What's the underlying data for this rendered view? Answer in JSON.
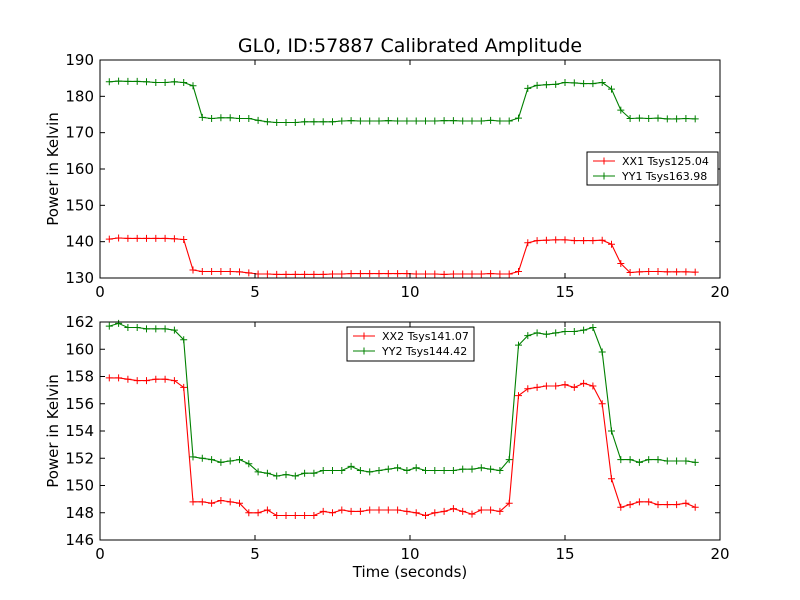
{
  "title": "GL0, ID:57887 Calibrated Amplitude",
  "colors": {
    "xx": "#ff0000",
    "yy": "#008000"
  },
  "chart_data": [
    {
      "type": "line",
      "title": "GL0, ID:57887 Calibrated Amplitude",
      "xlabel": "",
      "ylabel": "Power in Kelvin",
      "xlim": [
        0,
        20
      ],
      "ylim": [
        130,
        190
      ],
      "xticks": [
        "0",
        "5",
        "10",
        "15",
        "20"
      ],
      "yticks": [
        "130",
        "140",
        "150",
        "160",
        "170",
        "180",
        "190"
      ],
      "grid": false,
      "legend_position": "center-right",
      "x": [
        0.3,
        0.6,
        0.9,
        1.2,
        1.5,
        1.8,
        2.1,
        2.4,
        2.7,
        3.0,
        3.3,
        3.6,
        3.9,
        4.2,
        4.5,
        4.8,
        5.1,
        5.4,
        5.7,
        6.0,
        6.3,
        6.6,
        6.9,
        7.2,
        7.5,
        7.8,
        8.1,
        8.4,
        8.7,
        9.0,
        9.3,
        9.6,
        9.9,
        10.2,
        10.5,
        10.8,
        11.1,
        11.4,
        11.7,
        12.0,
        12.3,
        12.6,
        12.9,
        13.2,
        13.5,
        13.8,
        14.1,
        14.4,
        14.7,
        15.0,
        15.3,
        15.6,
        15.9,
        16.2,
        16.5,
        16.8,
        17.1,
        17.4,
        17.7,
        18.0,
        18.3,
        18.6,
        18.9,
        19.2
      ],
      "series": [
        {
          "name": "XX1 Tsys125.04",
          "color": "#ff0000",
          "values": [
            140.7,
            141.0,
            140.9,
            140.9,
            140.9,
            140.9,
            140.9,
            140.8,
            140.6,
            132.2,
            131.8,
            131.8,
            131.8,
            131.8,
            131.7,
            131.4,
            131.1,
            131.1,
            131.0,
            131.0,
            131.0,
            131.0,
            131.0,
            131.0,
            131.1,
            131.1,
            131.2,
            131.2,
            131.2,
            131.2,
            131.2,
            131.2,
            131.2,
            131.1,
            131.1,
            131.1,
            131.0,
            131.1,
            131.1,
            131.1,
            131.1,
            131.2,
            131.1,
            131.1,
            131.8,
            139.7,
            140.3,
            140.4,
            140.5,
            140.5,
            140.3,
            140.3,
            140.3,
            140.4,
            139.3,
            134.0,
            131.5,
            131.7,
            131.8,
            131.8,
            131.7,
            131.7,
            131.7,
            131.6
          ]
        },
        {
          "name": "YY1 Tsys163.98",
          "color": "#008000",
          "values": [
            184.0,
            184.2,
            184.1,
            184.1,
            184.0,
            183.8,
            183.8,
            184.0,
            183.8,
            182.9,
            174.2,
            173.9,
            174.1,
            174.1,
            173.9,
            173.9,
            173.4,
            173.0,
            172.8,
            172.8,
            172.8,
            173.0,
            173.0,
            173.0,
            173.0,
            173.2,
            173.3,
            173.2,
            173.2,
            173.2,
            173.3,
            173.2,
            173.2,
            173.2,
            173.2,
            173.2,
            173.3,
            173.3,
            173.2,
            173.2,
            173.2,
            173.4,
            173.2,
            173.2,
            174.0,
            182.2,
            183.0,
            183.2,
            183.3,
            183.8,
            183.7,
            183.5,
            183.5,
            183.8,
            182.0,
            176.2,
            173.9,
            174.0,
            173.9,
            174.0,
            173.8,
            173.8,
            173.9,
            173.8
          ]
        }
      ]
    },
    {
      "type": "line",
      "title": "",
      "xlabel": "Time (seconds)",
      "ylabel": "Power in Kelvin",
      "xlim": [
        0,
        20
      ],
      "ylim": [
        146,
        162
      ],
      "xticks": [
        "0",
        "5",
        "10",
        "15",
        "20"
      ],
      "yticks": [
        "146",
        "148",
        "150",
        "152",
        "154",
        "156",
        "158",
        "160",
        "162"
      ],
      "grid": false,
      "legend_position": "top-center",
      "x": [
        0.3,
        0.6,
        0.9,
        1.2,
        1.5,
        1.8,
        2.1,
        2.4,
        2.7,
        3.0,
        3.3,
        3.6,
        3.9,
        4.2,
        4.5,
        4.8,
        5.1,
        5.4,
        5.7,
        6.0,
        6.3,
        6.6,
        6.9,
        7.2,
        7.5,
        7.8,
        8.1,
        8.4,
        8.7,
        9.0,
        9.3,
        9.6,
        9.9,
        10.2,
        10.5,
        10.8,
        11.1,
        11.4,
        11.7,
        12.0,
        12.3,
        12.6,
        12.9,
        13.2,
        13.5,
        13.8,
        14.1,
        14.4,
        14.7,
        15.0,
        15.3,
        15.6,
        15.9,
        16.2,
        16.5,
        16.8,
        17.1,
        17.4,
        17.7,
        18.0,
        18.3,
        18.6,
        18.9,
        19.2
      ],
      "series": [
        {
          "name": "XX2 Tsys141.07",
          "color": "#ff0000",
          "values": [
            157.9,
            157.9,
            157.8,
            157.7,
            157.7,
            157.8,
            157.8,
            157.7,
            157.2,
            148.8,
            148.8,
            148.7,
            148.9,
            148.8,
            148.7,
            148.0,
            148.0,
            148.2,
            147.8,
            147.8,
            147.8,
            147.8,
            147.8,
            148.1,
            148.0,
            148.2,
            148.1,
            148.1,
            148.2,
            148.2,
            148.2,
            148.2,
            148.1,
            148.0,
            147.8,
            148.0,
            148.1,
            148.3,
            148.1,
            147.9,
            148.2,
            148.2,
            148.1,
            148.7,
            156.6,
            157.1,
            157.2,
            157.3,
            157.3,
            157.4,
            157.2,
            157.5,
            157.3,
            156.0,
            150.5,
            148.4,
            148.6,
            148.8,
            148.8,
            148.6,
            148.6,
            148.6,
            148.7,
            148.4
          ]
        },
        {
          "name": "YY2 Tsys144.42",
          "color": "#008000",
          "values": [
            161.7,
            161.9,
            161.6,
            161.6,
            161.5,
            161.5,
            161.5,
            161.4,
            160.7,
            152.1,
            152.0,
            151.9,
            151.7,
            151.8,
            151.9,
            151.6,
            151.0,
            150.9,
            150.7,
            150.8,
            150.7,
            150.9,
            150.9,
            151.1,
            151.1,
            151.1,
            151.4,
            151.1,
            151.0,
            151.1,
            151.2,
            151.3,
            151.1,
            151.3,
            151.1,
            151.1,
            151.1,
            151.1,
            151.2,
            151.2,
            151.3,
            151.2,
            151.1,
            151.9,
            160.3,
            161.0,
            161.2,
            161.1,
            161.2,
            161.3,
            161.3,
            161.4,
            161.6,
            159.8,
            154.0,
            151.9,
            151.9,
            151.7,
            151.9,
            151.9,
            151.8,
            151.8,
            151.8,
            151.7
          ]
        }
      ]
    }
  ]
}
